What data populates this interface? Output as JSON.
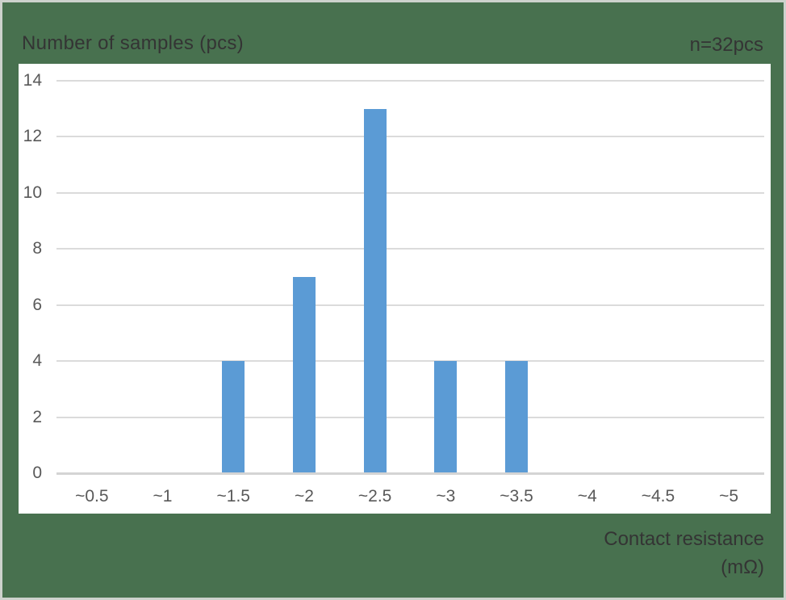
{
  "chart_data": {
    "type": "bar",
    "title": "Number of samples (pcs)",
    "annotation": "n=32pcs",
    "xlabel_line1": "Contact resistance",
    "xlabel_line2": "(mΩ)",
    "categories": [
      "~0.5",
      "~1",
      "~1.5",
      "~2",
      "~2.5",
      "~3",
      "~3.5",
      "~4",
      "~4.5",
      "~5"
    ],
    "values": [
      0,
      0,
      4,
      7,
      13,
      4,
      4,
      0,
      0,
      0
    ],
    "yticks": [
      0,
      2,
      4,
      6,
      8,
      10,
      12,
      14
    ],
    "ylim": [
      0,
      14
    ],
    "grid": true,
    "legend": "none",
    "total_samples": 32,
    "colors": {
      "bar": "#5B9BD5",
      "background": "#48714F",
      "plot_background": "#FFFFFF",
      "gridline": "#DBDBDB",
      "axis_line": "#D4D4D4",
      "tick_label": "#595959",
      "title_text": "#343434",
      "frame_border": "#CDD2CD"
    }
  }
}
